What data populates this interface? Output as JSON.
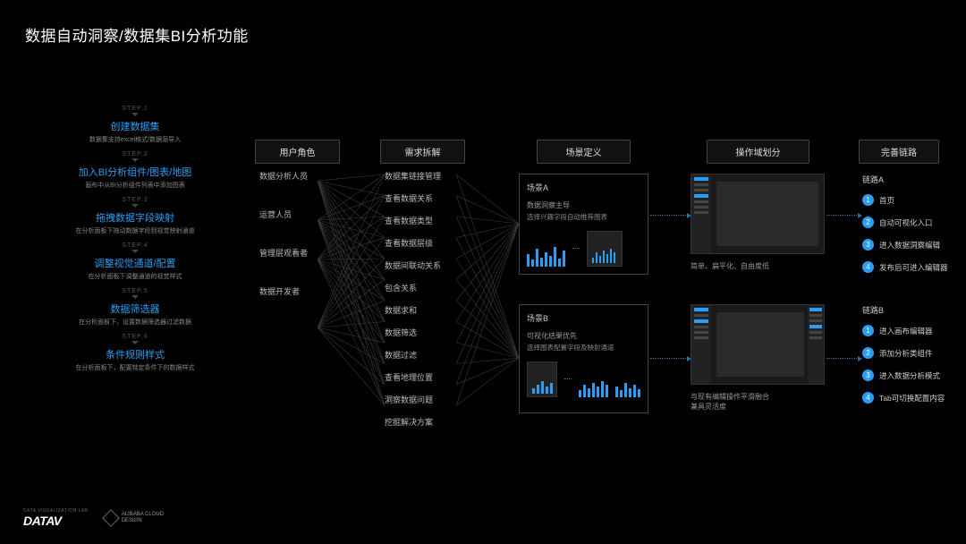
{
  "title": "数据自动洞察/数据集BI分析功能",
  "accent_color": "#2a9df4",
  "bg_color": "#000000",
  "steps": [
    {
      "n": "STEP.1",
      "title": "创建数据集",
      "desc": "数据集支持excel格式/数据源导入"
    },
    {
      "n": "STEP.2",
      "title": "加入BI分析组件/图表/地图",
      "desc": "画布中从BI分析组件列表中添加图表"
    },
    {
      "n": "STEP.3",
      "title": "拖拽数据字段映射",
      "desc": "在分析面板下拖动数据字段到视觉映射通道"
    },
    {
      "n": "STEP.4",
      "title": "调整视觉通道/配置",
      "desc": "在分析面板下调整通道的视觉样式"
    },
    {
      "n": "STEP.5",
      "title": "数据筛选器",
      "desc": "在分析面板下，设置数据筛选器过滤数据"
    },
    {
      "n": "STEP.6",
      "title": "条件规则样式",
      "desc": "在分析面板下，配置特定条件下的数据样式"
    }
  ],
  "columns": {
    "roles": "用户角色",
    "demand": "需求拆解",
    "scene": "场景定义",
    "ops": "操作域划分",
    "chain": "完善链路"
  },
  "roles": [
    "数据分析人员",
    "运营人员",
    "管理层观看者",
    "数据开发者"
  ],
  "demand": [
    "数据集链接管理",
    "查看数据关系",
    "查看数据类型",
    "查看数据层级",
    "数据间联动关系",
    "包含关系",
    "数据求和",
    "数据筛选",
    "数据过滤",
    "查看地理位置",
    "洞察数据问题",
    "挖掘解决方案"
  ],
  "sceneA": {
    "label": "场景A",
    "l1": "数据洞察主导",
    "l2": "选择兴趣字段自动推荐图表",
    "bars1": [
      14,
      8,
      20,
      10,
      16,
      12,
      22,
      9,
      18
    ],
    "bars2": [
      6,
      12,
      8,
      14,
      10,
      16,
      12
    ]
  },
  "sceneB": {
    "label": "场景B",
    "l1": "可视化结果优先",
    "l2": "选择图表配置字段及映射通道",
    "bars1": [
      6,
      10,
      14,
      8,
      12
    ],
    "barsP": [
      8,
      14,
      10,
      16,
      12,
      18,
      14
    ],
    "barsQ": [
      12,
      8,
      16,
      10,
      14,
      9
    ]
  },
  "mockA_caption": "简单、扁平化、自由度低",
  "mockB_caption": "与现有编辑操作平滑融合\n兼具灵活度",
  "chainA": {
    "label": "链路A",
    "items": [
      "首页",
      "自动可视化入口",
      "进入数据洞察编辑",
      "发布后可进入编辑器"
    ]
  },
  "chainB": {
    "label": "链路B",
    "items": [
      "进入画布编辑器",
      "添加分析类组件",
      "进入数据分析模式",
      "Tab可切换配置内容"
    ]
  },
  "footer": {
    "datav_sub": "DATA VISUALIZATION LAB",
    "datav": "DATAV",
    "ac": "ALIBABA CLOUD\nDESIGN"
  }
}
